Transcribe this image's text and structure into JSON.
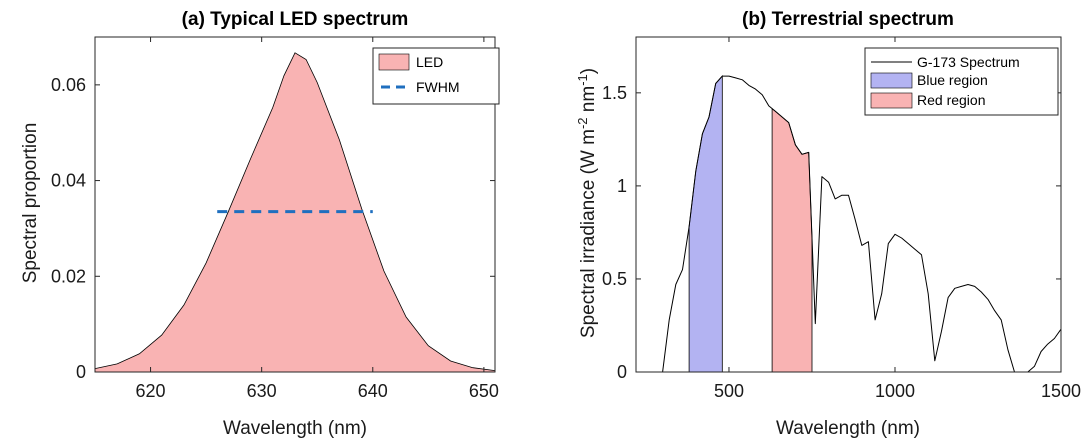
{
  "chart_data": [
    {
      "type": "area",
      "title": "(a) Typical LED spectrum",
      "xlabel": "Wavelength (nm)",
      "ylabel": "Spectral proportion",
      "xlim": [
        615,
        651
      ],
      "ylim": [
        0,
        0.07
      ],
      "xticks": [
        620,
        630,
        640,
        650
      ],
      "xtick_labels": [
        "620",
        "630",
        "640",
        "650"
      ],
      "yticks": [
        0,
        0.02,
        0.04,
        0.06
      ],
      "ytick_labels": [
        "0",
        "0.02",
        "0.04",
        "0.06"
      ],
      "series": [
        {
          "name": "LED",
          "x": [
            615,
            617,
            619,
            621,
            623,
            625,
            627,
            629,
            631,
            632,
            633,
            634,
            635,
            637,
            639,
            641,
            643,
            645,
            647,
            649,
            651
          ],
          "y": [
            0.0007,
            0.0017,
            0.0038,
            0.0077,
            0.014,
            0.0228,
            0.0335,
            0.0446,
            0.0553,
            0.0619,
            0.0667,
            0.0653,
            0.0605,
            0.0485,
            0.0341,
            0.0211,
            0.0115,
            0.0055,
            0.0023,
            0.0009,
            0.0003
          ],
          "color": "#f9b3b3"
        },
        {
          "name": "FWHM",
          "x": [
            626,
            640
          ],
          "y": [
            0.0335,
            0.0335
          ],
          "color": "#1f6fbf"
        }
      ],
      "legend": [
        "LED",
        "FWHM"
      ],
      "legend_position": "top-right",
      "grid": false
    },
    {
      "type": "line",
      "title": "(b) Terrestrial spectrum",
      "xlabel": "Wavelength (nm)",
      "ylabel": "Spectral irradiance (W m-2 nm-1)",
      "ylabel_parts": {
        "pre": "Spectral irradiance (W m",
        "sup1": "-2",
        "mid": " nm",
        "sup2": "-1",
        "post": ")"
      },
      "xlim": [
        220,
        1500
      ],
      "ylim": [
        0,
        1.8
      ],
      "xticks": [
        500,
        1000,
        1500
      ],
      "xtick_labels": [
        "500",
        "1000",
        "1500"
      ],
      "yticks": [
        0,
        0.5,
        1,
        1.5
      ],
      "ytick_labels": [
        "0",
        "0.5",
        "1",
        "1.5"
      ],
      "series": [
        {
          "name": "G-173 Spectrum",
          "x": [
            280,
            300,
            320,
            340,
            360,
            380,
            400,
            420,
            440,
            460,
            480,
            500,
            520,
            540,
            560,
            580,
            600,
            620,
            640,
            660,
            680,
            700,
            720,
            740,
            760,
            780,
            800,
            820,
            840,
            860,
            880,
            900,
            920,
            940,
            960,
            980,
            1000,
            1020,
            1040,
            1060,
            1080,
            1100,
            1120,
            1140,
            1160,
            1180,
            1200,
            1220,
            1240,
            1260,
            1280,
            1300,
            1320,
            1340,
            1360,
            1380,
            1400,
            1420,
            1440,
            1460,
            1480,
            1500
          ],
          "y": [
            0.0,
            0.0,
            0.28,
            0.47,
            0.55,
            0.78,
            1.08,
            1.28,
            1.37,
            1.55,
            1.59,
            1.59,
            1.58,
            1.57,
            1.54,
            1.52,
            1.49,
            1.43,
            1.4,
            1.37,
            1.34,
            1.22,
            1.17,
            1.18,
            0.26,
            1.05,
            1.02,
            0.93,
            0.95,
            0.95,
            0.82,
            0.68,
            0.7,
            0.28,
            0.42,
            0.69,
            0.74,
            0.72,
            0.69,
            0.66,
            0.63,
            0.42,
            0.06,
            0.22,
            0.4,
            0.45,
            0.46,
            0.47,
            0.46,
            0.43,
            0.39,
            0.33,
            0.28,
            0.12,
            0.0,
            0.0,
            0.0,
            0.03,
            0.11,
            0.15,
            0.18,
            0.23
          ],
          "color": "#000000"
        },
        {
          "name": "Blue region",
          "x_range": [
            380,
            480
          ],
          "color": "#b3b3f2"
        },
        {
          "name": "Red region",
          "x_range": [
            630,
            750
          ],
          "color": "#f9b3b3"
        }
      ],
      "legend": [
        "G-173 Spectrum",
        "Blue region",
        "Red region"
      ],
      "legend_position": "top-right",
      "grid": false
    }
  ]
}
